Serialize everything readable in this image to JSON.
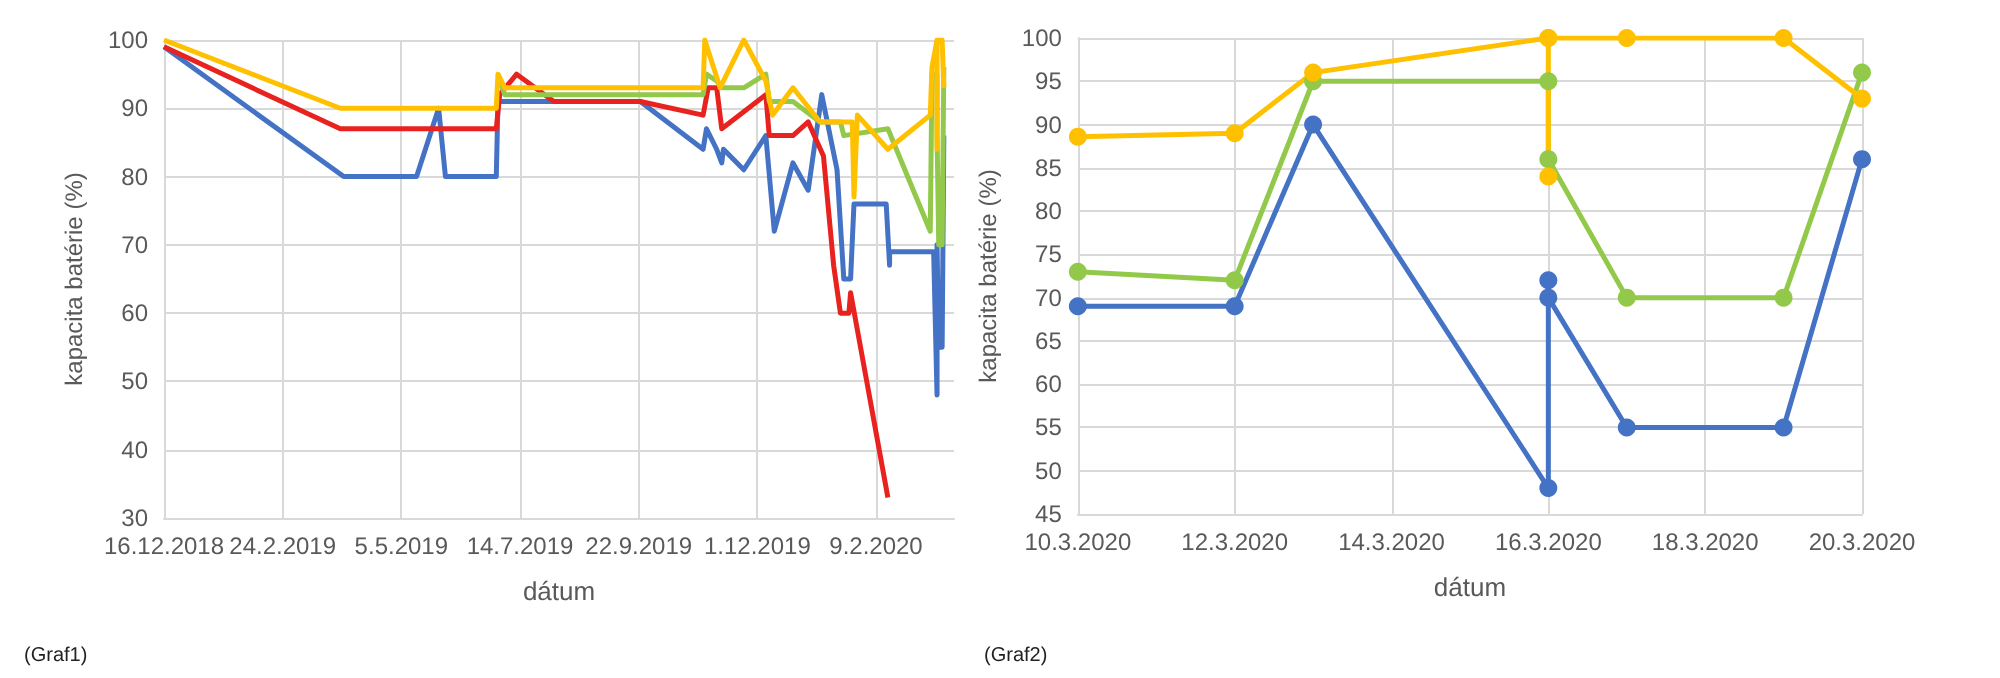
{
  "chart_data": [
    {
      "type": "line",
      "xlabel": "dátum",
      "ylabel": "kapacita batérie (%)",
      "annotations": [
        "(Graf1)"
      ],
      "xlim": [
        "2018-12-16",
        "2020-03-26"
      ],
      "ylim": [
        30,
        100
      ],
      "xticks": [
        {
          "value": "2018-12-16",
          "label": "16.12.2018"
        },
        {
          "value": "2019-02-24",
          "label": "24.2.2019"
        },
        {
          "value": "2019-05-05",
          "label": "5.5.2019"
        },
        {
          "value": "2019-07-14",
          "label": "14.7.2019"
        },
        {
          "value": "2019-09-22",
          "label": "22.9.2019"
        },
        {
          "value": "2019-12-01",
          "label": "1.12.2019"
        },
        {
          "value": "2020-02-09",
          "label": "9.2.2020"
        }
      ],
      "yticks": [
        30,
        40,
        50,
        60,
        70,
        80,
        90,
        100
      ],
      "grid": true,
      "marker": "none",
      "line_style": "solid",
      "series": [
        {
          "color": "#4472c4",
          "x": [
            "2018-12-16",
            "2019-04-01",
            "2019-05-14",
            "2019-05-27",
            "2019-05-31",
            "2019-06-30",
            "2019-07-01",
            "2019-09-23",
            "2019-10-30",
            "2019-11-01",
            "2019-11-07",
            "2019-11-10",
            "2019-11-11",
            "2019-11-23",
            "2019-12-06",
            "2019-12-11",
            "2019-12-22",
            "2019-12-31",
            "2020-01-08",
            "2020-01-17",
            "2020-01-21",
            "2020-01-25",
            "2020-01-27",
            "2020-02-15",
            "2020-02-17",
            "2020-02-17",
            "2020-03-14",
            "2020-03-16",
            "2020-03-16",
            "2020-03-17",
            "2020-03-19",
            "2020-03-20"
          ],
          "values": [
            99,
            80,
            80,
            90,
            80,
            80,
            91,
            91,
            84,
            87,
            84,
            82,
            84,
            81,
            86,
            72,
            82,
            78,
            92,
            81,
            65,
            65,
            76,
            76,
            67,
            69,
            69,
            48,
            70,
            55,
            55,
            86
          ]
        },
        {
          "color": "#e8231f",
          "x": [
            "2018-12-16",
            "2019-03-30",
            "2019-06-30",
            "2019-07-02",
            "2019-07-12",
            "2019-08-03",
            "2019-09-23",
            "2019-10-30",
            "2019-11-02",
            "2019-11-07",
            "2019-11-10",
            "2019-12-06",
            "2019-12-08",
            "2019-12-22",
            "2019-12-31",
            "2020-01-09",
            "2020-01-15",
            "2020-01-19",
            "2020-01-24",
            "2020-01-25",
            "2020-02-16"
          ],
          "values": [
            99,
            87,
            87,
            92,
            95,
            91,
            91,
            89,
            93,
            93,
            87,
            92,
            86,
            86,
            88,
            83,
            67,
            60,
            60,
            63,
            33
          ]
        },
        {
          "color": "#92c94a",
          "x": [
            "2019-07-01",
            "2019-07-05",
            "2019-10-30",
            "2019-11-01",
            "2019-11-07",
            "2019-11-10",
            "2019-11-23",
            "2019-12-06",
            "2019-12-08",
            "2019-12-22",
            "2020-01-07",
            "2020-01-19",
            "2020-01-21",
            "2020-02-16",
            "2020-03-12",
            "2020-03-13",
            "2020-03-16",
            "2020-03-16",
            "2020-03-17",
            "2020-03-19",
            "2020-03-20"
          ],
          "values": [
            95,
            92,
            92,
            95,
            94,
            93,
            93,
            95,
            91,
            91,
            88,
            88,
            86,
            87,
            72,
            95,
            95,
            86,
            70,
            70,
            96
          ]
        },
        {
          "color": "#ffc000",
          "x": [
            "2018-12-16",
            "2019-03-30",
            "2019-06-30",
            "2019-07-01",
            "2019-07-05",
            "2019-10-30",
            "2019-10-31",
            "2019-11-09",
            "2019-11-23",
            "2019-12-06",
            "2019-12-10",
            "2019-12-22",
            "2020-01-07",
            "2020-01-26",
            "2020-01-27",
            "2020-01-29",
            "2020-02-16",
            "2020-03-12",
            "2020-03-13",
            "2020-03-16",
            "2020-03-16",
            "2020-03-16",
            "2020-03-17",
            "2020-03-19",
            "2020-03-20"
          ],
          "values": [
            100,
            90,
            90,
            95,
            93,
            93,
            100,
            93,
            100,
            94,
            89,
            93,
            88,
            88,
            77,
            89,
            84,
            89,
            96,
            100,
            84,
            100,
            100,
            100,
            93
          ]
        }
      ]
    },
    {
      "type": "line",
      "xlabel": "dátum",
      "ylabel": "kapacita batérie (%)",
      "annotations": [
        "(Graf2)"
      ],
      "xlim": [
        "2020-03-10",
        "2020-03-20"
      ],
      "ylim": [
        45,
        100
      ],
      "xticks": [
        {
          "value": "2020-03-10",
          "label": "10.3.2020"
        },
        {
          "value": "2020-03-12",
          "label": "12.3.2020"
        },
        {
          "value": "2020-03-14",
          "label": "14.3.2020"
        },
        {
          "value": "2020-03-16",
          "label": "16.3.2020"
        },
        {
          "value": "2020-03-18",
          "label": "18.3.2020"
        },
        {
          "value": "2020-03-20",
          "label": "20.3.2020"
        }
      ],
      "yticks": [
        45,
        50,
        55,
        60,
        65,
        70,
        75,
        80,
        85,
        90,
        95,
        100
      ],
      "grid": true,
      "marker": "circle",
      "line_style": "solid",
      "series": [
        {
          "color": "#4472c4",
          "x": [
            "2020-03-10",
            "2020-03-12",
            "2020-03-13",
            "2020-03-16",
            "2020-03-16",
            "2020-03-16",
            "2020-03-17",
            "2020-03-19",
            "2020-03-20"
          ],
          "values": [
            69,
            69,
            90,
            48,
            72,
            70,
            55,
            55,
            86
          ]
        },
        {
          "color": "#92c94a",
          "x": [
            "2020-03-10",
            "2020-03-12",
            "2020-03-13",
            "2020-03-16",
            "2020-03-16",
            "2020-03-17",
            "2020-03-19",
            "2020-03-20"
          ],
          "values": [
            73,
            72,
            95,
            95,
            86,
            70,
            70,
            96
          ]
        },
        {
          "color": "#ffc000",
          "x": [
            "2020-03-10",
            "2020-03-12",
            "2020-03-13",
            "2020-03-16",
            "2020-03-16",
            "2020-03-16",
            "2020-03-17",
            "2020-03-19",
            "2020-03-20"
          ],
          "values": [
            88.6,
            89,
            96,
            100,
            84,
            100,
            100,
            100,
            93
          ]
        }
      ]
    }
  ]
}
